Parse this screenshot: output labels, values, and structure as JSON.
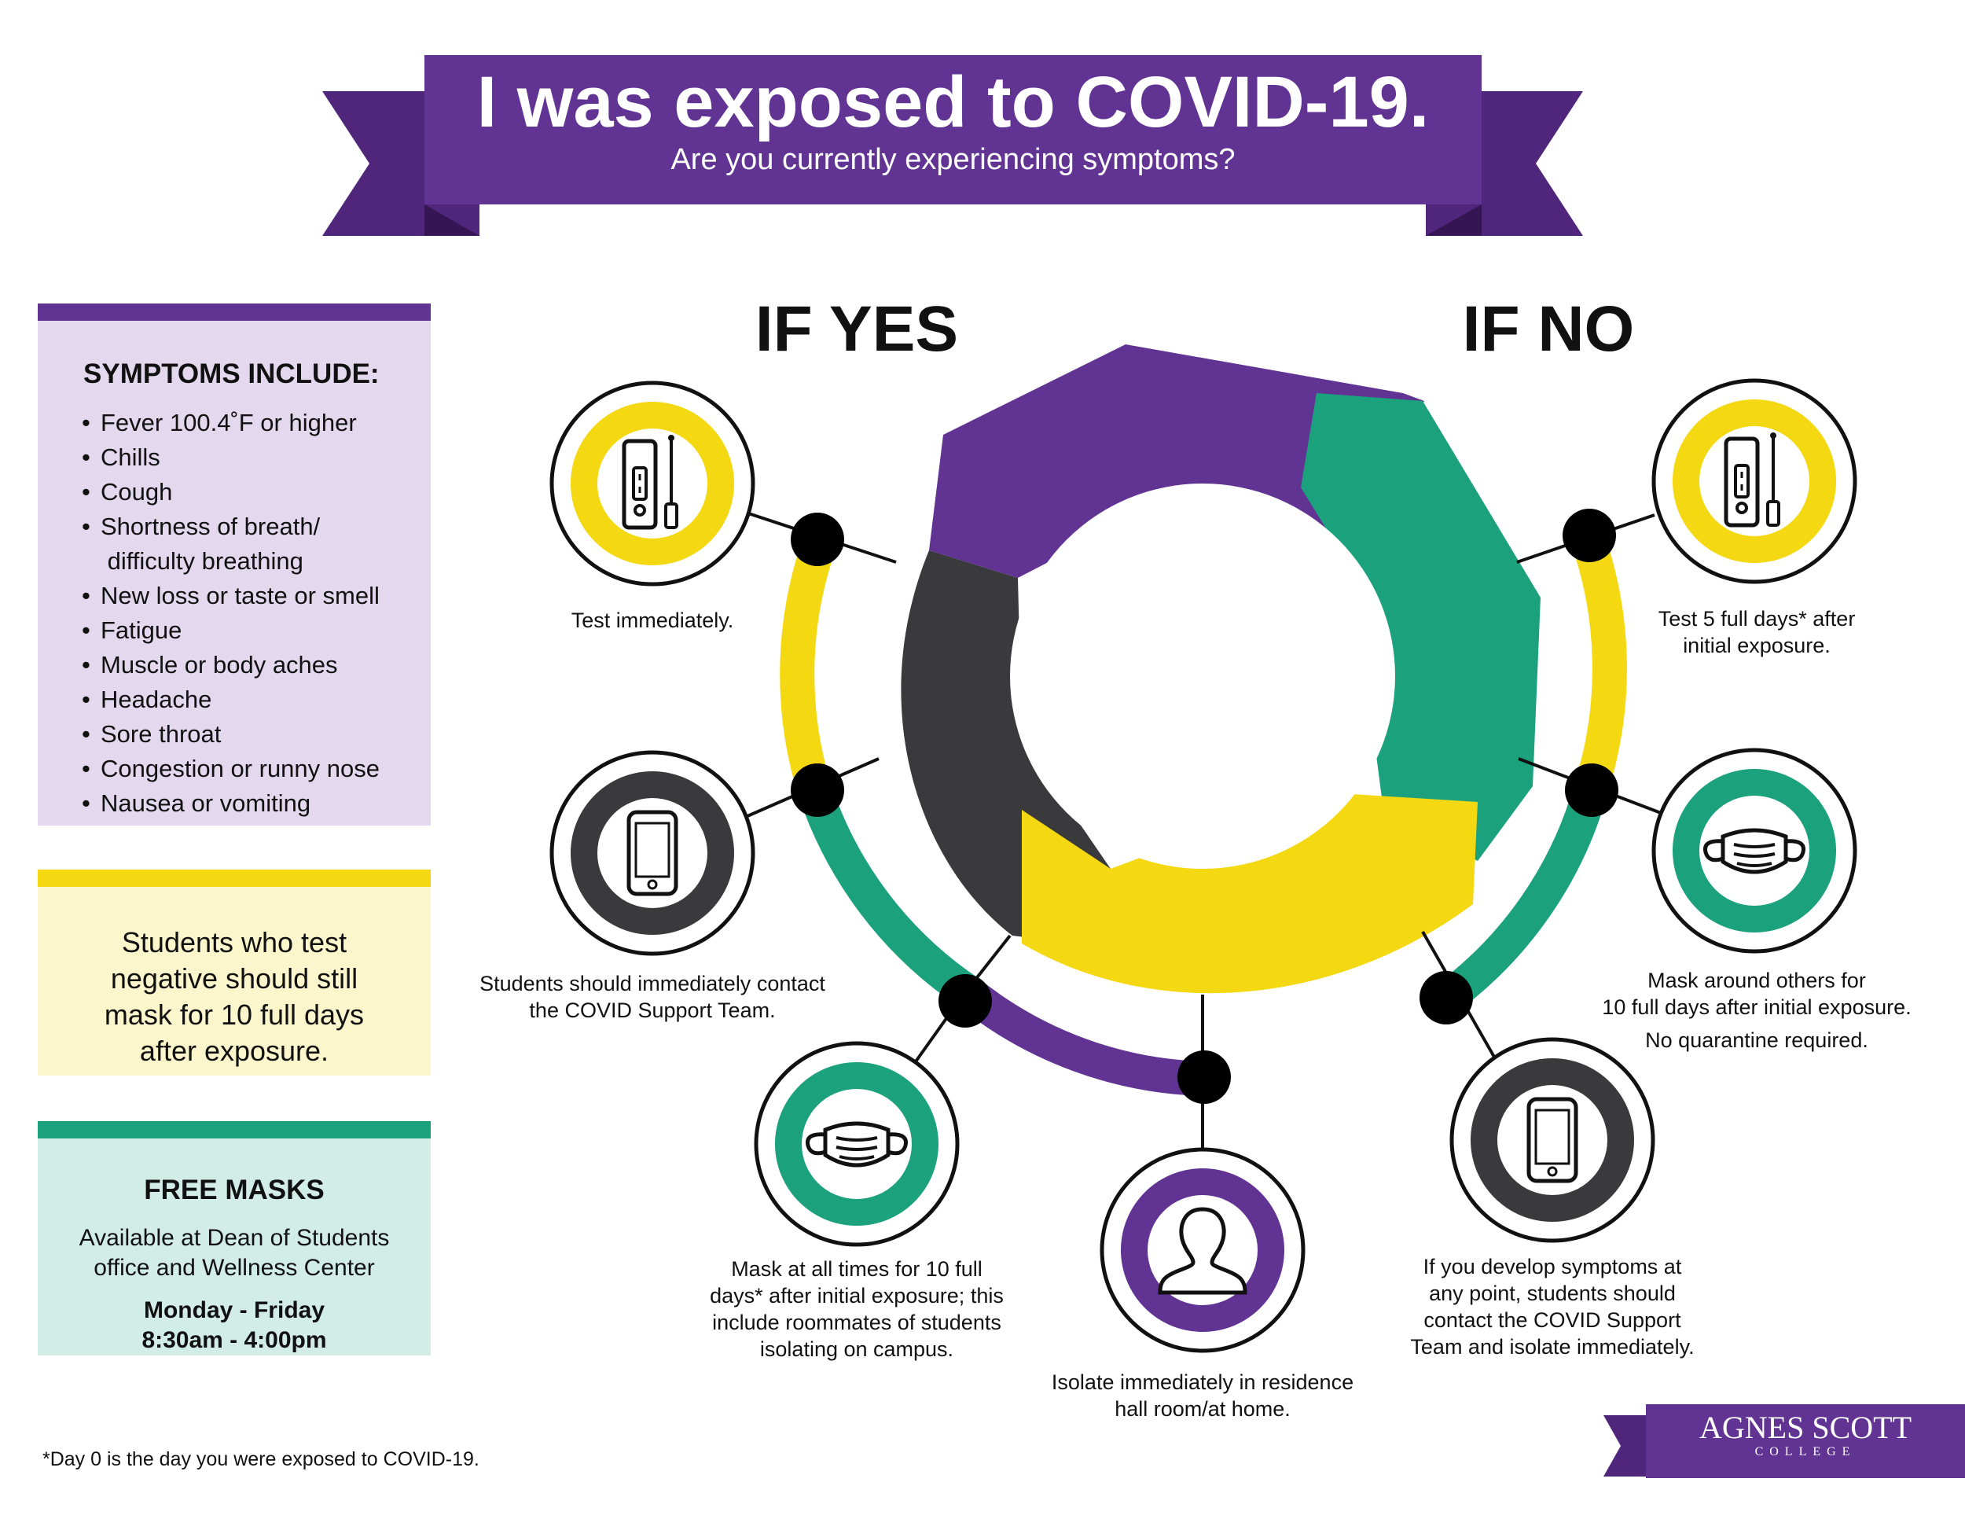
{
  "banner": {
    "title": "I was exposed to COVID-19.",
    "subtitle": "Are you currently experiencing symptoms?"
  },
  "branches": {
    "yes": "IF YES",
    "no": "IF NO"
  },
  "symptoms": {
    "title": "SYMPTOMS INCLUDE:",
    "items": [
      "Fever 100.4˚F or higher",
      "Chills",
      "Cough",
      "Shortness of breath/\n difficulty breathing",
      "New loss or taste or smell",
      "Fatigue",
      "Muscle or body aches",
      "Headache",
      "Sore throat",
      "Congestion or runny nose",
      "Nausea or vomiting"
    ]
  },
  "negative_note": "Students who test\nnegative should still\nmask for 10 full days\nafter exposure.",
  "free_masks": {
    "title": "FREE MASKS",
    "text": "Available at Dean of Students\noffice and Wellness Center",
    "hours": "Monday - Friday\n8:30am - 4:00pm"
  },
  "yes_steps": {
    "test": "Test immediately.",
    "contact": "Students should immediately contact\nthe COVID Support Team.",
    "mask": "Mask at all times for 10 full\ndays* after initial exposure; this\ninclude roommates of students\nisolating on campus.",
    "isolate": "Isolate immediately in residence\nhall room/at home."
  },
  "no_steps": {
    "test": "Test 5 full days* after\ninitial exposure.",
    "mask": "Mask around others for\n10 full days after initial exposure.",
    "no_quarantine": "No quarantine required.",
    "symptoms": "If you develop symptoms at\nany point, students should\ncontact the COVID Support\nTeam and isolate immediately."
  },
  "footnote": "*Day 0 is the day you were exposed to COVID-19.",
  "logo": {
    "name": "AGNES SCOTT",
    "subtitle": "COLLEGE"
  },
  "colors": {
    "purple": "#613393",
    "purple_dark": "#48226f",
    "green": "#1ba27d",
    "yellow": "#f4d812",
    "charcoal": "#3a3a3c",
    "black": "#000000"
  },
  "icons": [
    "test-kit-icon",
    "phone-icon",
    "face-mask-icon",
    "person-icon"
  ]
}
